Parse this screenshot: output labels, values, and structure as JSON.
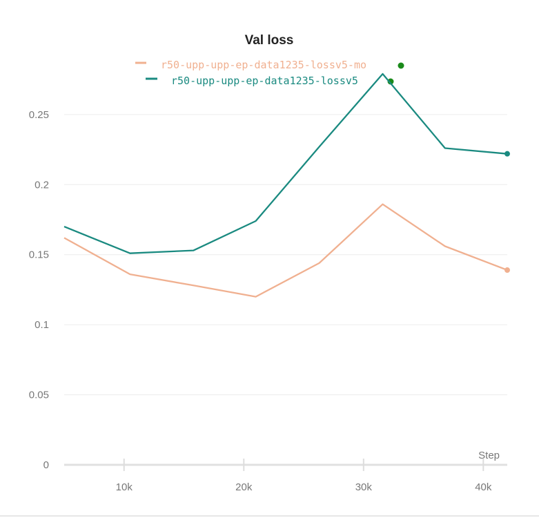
{
  "chart_data": {
    "type": "line",
    "title": "Val loss",
    "xlabel": "Step",
    "ylabel": "",
    "xlim": [
      5000,
      42000
    ],
    "ylim": [
      0,
      0.28
    ],
    "x_ticks": [
      10000,
      20000,
      30000,
      40000
    ],
    "x_tick_labels": [
      "10k",
      "20k",
      "30k",
      "40k"
    ],
    "y_ticks": [
      0,
      0.05,
      0.1,
      0.15,
      0.2,
      0.25
    ],
    "y_tick_labels": [
      "0",
      "0.05",
      "0.1",
      "0.15",
      "0.2",
      "0.25"
    ],
    "grid": true,
    "legend_position": "top-center",
    "series": [
      {
        "name": "r50-upp-upp-ep-data1235-lossv5-mo",
        "color": "#f0b090",
        "status_color": "#1a8a1a",
        "x": [
          5000,
          10500,
          15800,
          21000,
          26300,
          31600,
          36800,
          42000
        ],
        "values": [
          0.162,
          0.136,
          0.128,
          0.12,
          0.144,
          0.186,
          0.156,
          0.139
        ]
      },
      {
        "name": "r50-upp-upp-ep-data1235-lossv5",
        "color": "#1a8a80",
        "status_color": "#1a8a1a",
        "x": [
          5000,
          10500,
          15800,
          21000,
          26300,
          31600,
          36800,
          42000
        ],
        "values": [
          0.17,
          0.151,
          0.153,
          0.174,
          0.227,
          0.279,
          0.226,
          0.222
        ]
      }
    ]
  }
}
